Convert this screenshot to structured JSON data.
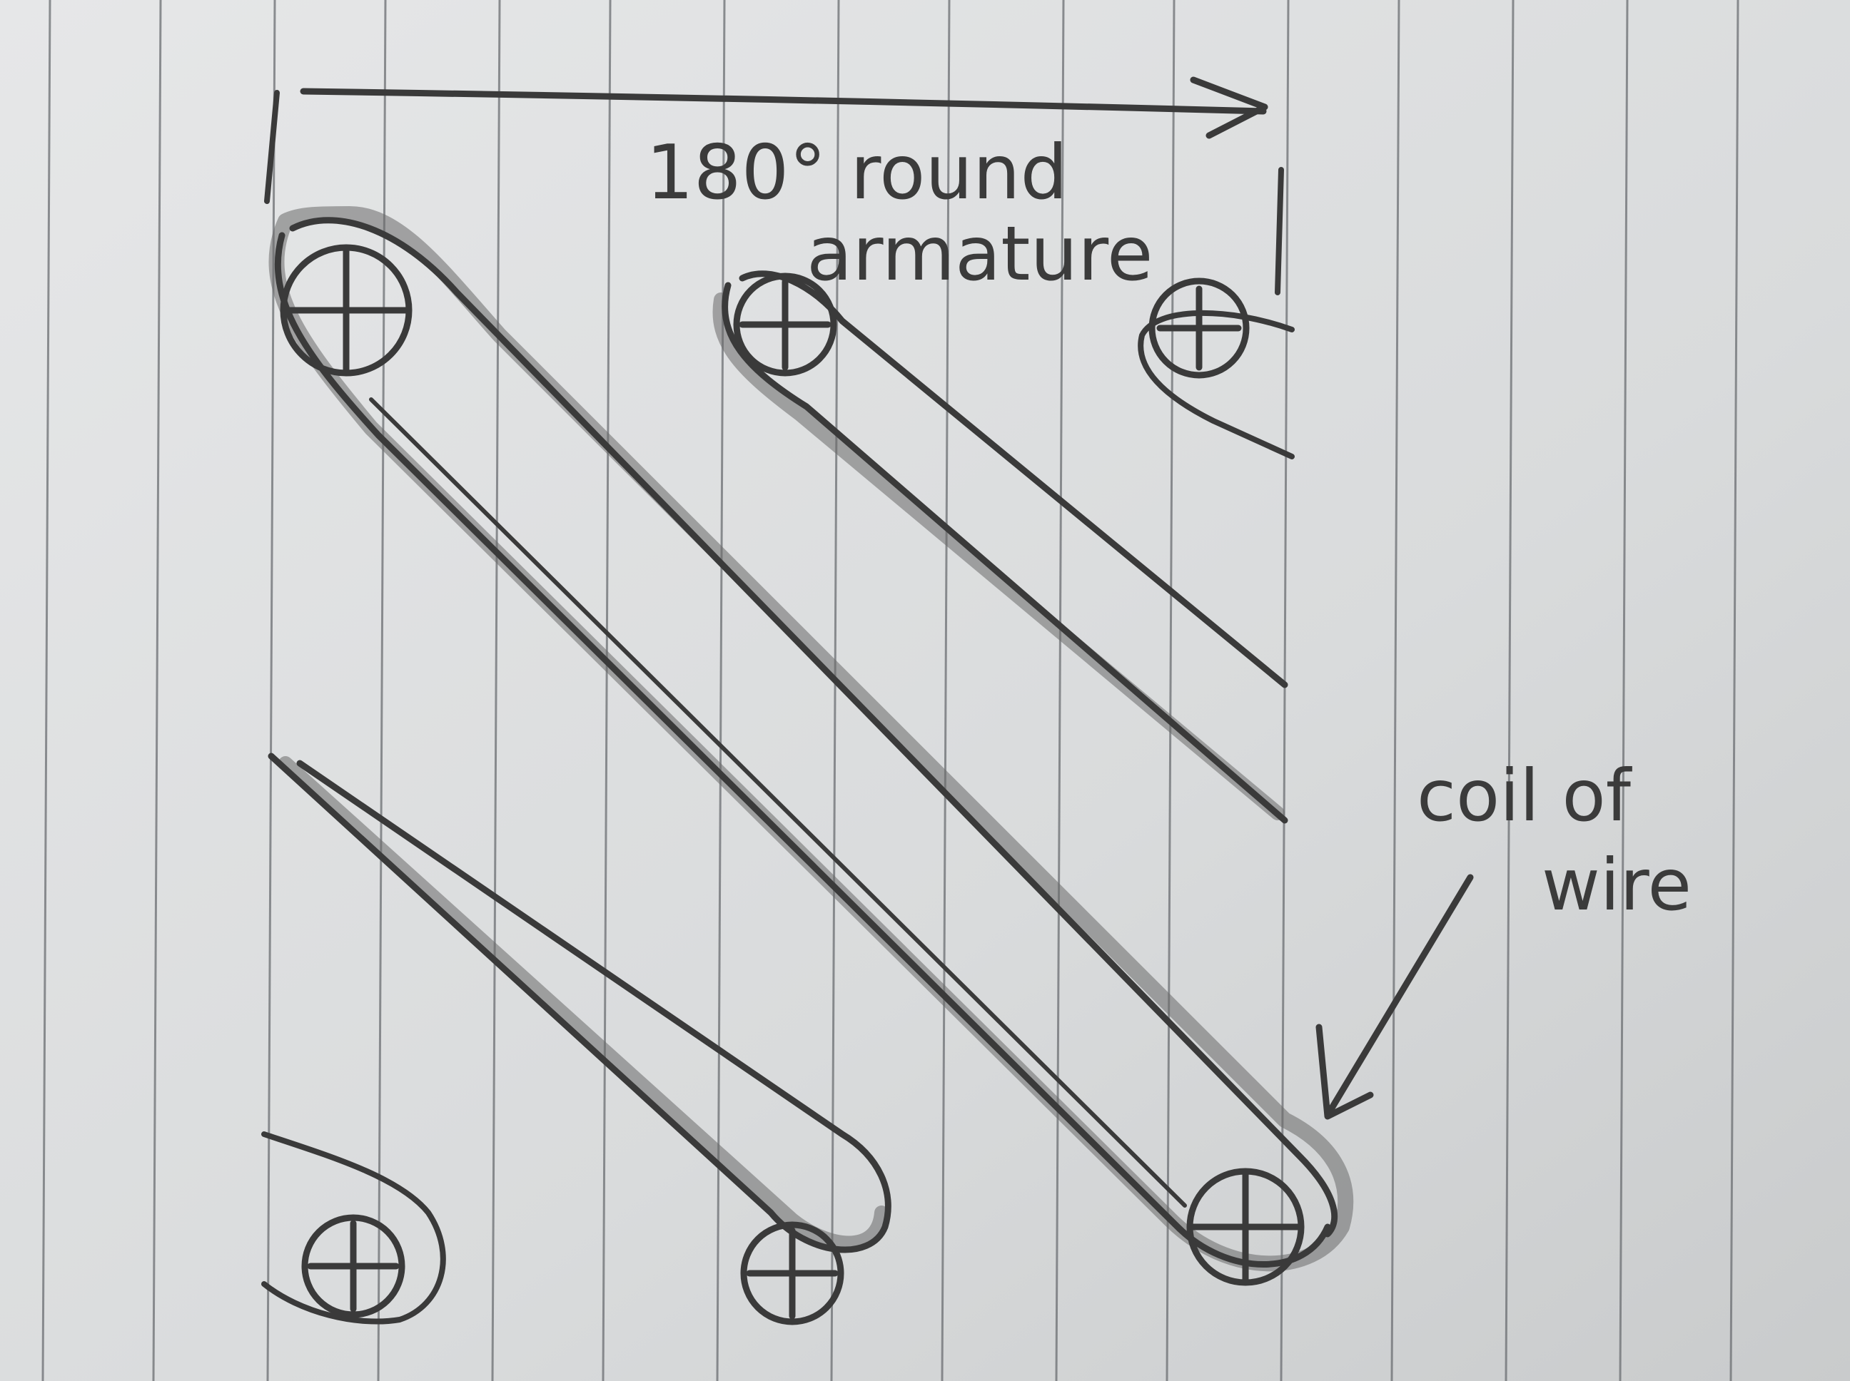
{
  "annotations": {
    "angle_label_line1": "180° round",
    "angle_label_line2": "armature",
    "callout_line1": "coil of",
    "callout_line2": "wire"
  },
  "colors": {
    "paper": "#dcdedf",
    "rule_line": "#6b6e72",
    "pencil": "#3a3a3a"
  },
  "icons": {
    "pivot": "circled-cross-icon",
    "direction": "arrow-right-icon",
    "callout": "arrow-down-left-icon"
  }
}
